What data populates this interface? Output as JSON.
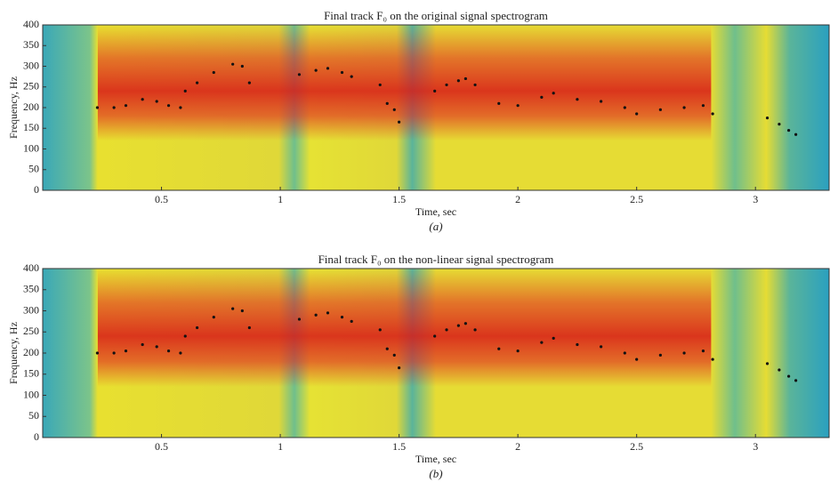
{
  "chart_data": [
    {
      "type": "line",
      "title": "Final track F₀ on the original signal spectrogram",
      "caption": "(a)",
      "xlabel": "Time, sec",
      "ylabel": "Frequency, Hz",
      "color": "#111111",
      "xlim": [
        0,
        3.31
      ],
      "ylim": [
        0,
        400
      ],
      "xticks": [
        0.5,
        1,
        1.5,
        2,
        2.5,
        3
      ],
      "yticks": [
        0,
        50,
        100,
        150,
        200,
        250,
        300,
        350,
        400
      ],
      "x": [
        0.23,
        0.3,
        0.35,
        0.42,
        0.48,
        0.53,
        0.58,
        0.59,
        0.6,
        0.65,
        0.72,
        0.8,
        0.84,
        0.87,
        1.0,
        1.08,
        1.15,
        1.2,
        1.26,
        1.3,
        1.36,
        1.42,
        1.45,
        1.48,
        1.5,
        1.58,
        1.65,
        1.7,
        1.75,
        1.78,
        1.82,
        1.87,
        1.92,
        2.0,
        2.1,
        2.15,
        2.25,
        2.35,
        2.45,
        2.5,
        2.6,
        2.7,
        2.78,
        2.82,
        2.95,
        3.05,
        3.1,
        3.14,
        3.17
      ],
      "values": [
        200,
        200,
        205,
        220,
        215,
        205,
        200,
        null,
        240,
        260,
        285,
        305,
        300,
        260,
        null,
        280,
        290,
        295,
        285,
        275,
        null,
        255,
        210,
        195,
        165,
        null,
        240,
        255,
        265,
        270,
        255,
        null,
        210,
        205,
        225,
        235,
        220,
        215,
        200,
        185,
        195,
        200,
        205,
        185,
        null,
        175,
        160,
        145,
        135
      ]
    },
    {
      "type": "line",
      "title": "Final track F₀ on the non-linear signal spectrogram",
      "caption": "(b)",
      "xlabel": "Time, sec",
      "ylabel": "Frequency, Hz",
      "color": "#111111",
      "xlim": [
        0,
        3.31
      ],
      "ylim": [
        0,
        400
      ],
      "xticks": [
        0.5,
        1,
        1.5,
        2,
        2.5,
        3
      ],
      "yticks": [
        0,
        50,
        100,
        150,
        200,
        250,
        300,
        350,
        400
      ],
      "x": [
        0.23,
        0.3,
        0.35,
        0.42,
        0.48,
        0.53,
        0.58,
        0.59,
        0.6,
        0.65,
        0.72,
        0.8,
        0.84,
        0.87,
        1.0,
        1.08,
        1.15,
        1.2,
        1.26,
        1.3,
        1.36,
        1.42,
        1.45,
        1.48,
        1.5,
        1.58,
        1.65,
        1.7,
        1.75,
        1.78,
        1.82,
        1.87,
        1.92,
        2.0,
        2.1,
        2.15,
        2.25,
        2.35,
        2.45,
        2.5,
        2.6,
        2.7,
        2.78,
        2.82,
        2.95,
        3.05,
        3.1,
        3.14,
        3.17
      ],
      "values": [
        200,
        200,
        205,
        220,
        215,
        205,
        200,
        null,
        240,
        260,
        285,
        305,
        300,
        260,
        null,
        280,
        290,
        295,
        285,
        275,
        null,
        255,
        210,
        195,
        165,
        null,
        240,
        255,
        265,
        270,
        255,
        null,
        210,
        205,
        225,
        235,
        220,
        215,
        200,
        185,
        195,
        200,
        205,
        185,
        null,
        175,
        160,
        145,
        135
      ]
    }
  ]
}
